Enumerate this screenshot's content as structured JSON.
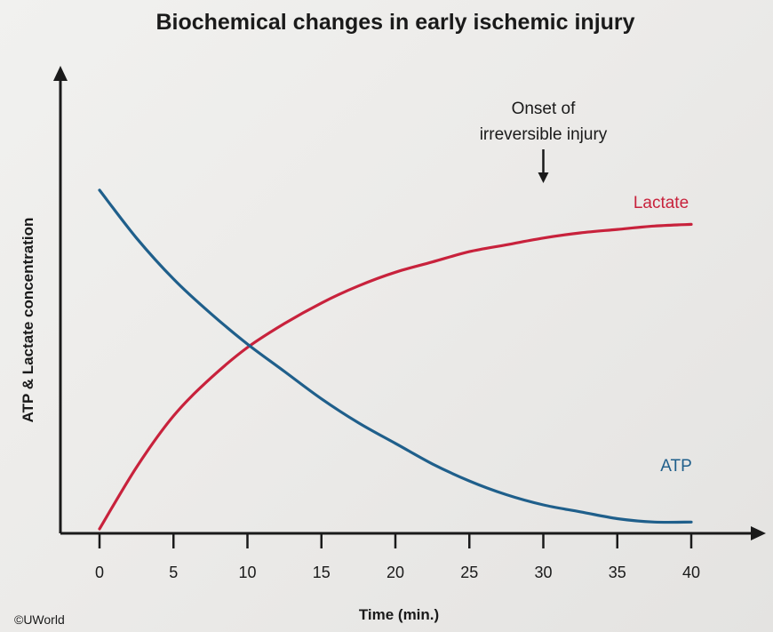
{
  "chart_data": {
    "type": "line",
    "title": "Biochemical changes in early ischemic injury",
    "xlabel": "Time (min.)",
    "ylabel": "ATP & Lactate concentration",
    "xticks": [
      0,
      5,
      10,
      15,
      20,
      25,
      30,
      35,
      40
    ],
    "xlim": [
      0,
      40
    ],
    "ylim": [
      0,
      1
    ],
    "grid": false,
    "x": [
      0,
      2.5,
      5,
      7.5,
      10,
      12.5,
      15,
      17.5,
      20,
      22.5,
      25,
      27.5,
      30,
      32.5,
      35,
      37.5,
      40
    ],
    "series": [
      {
        "name": "Lactate",
        "color": "#c8223c",
        "values": [
          0.0,
          0.18,
          0.33,
          0.44,
          0.53,
          0.6,
          0.66,
          0.71,
          0.75,
          0.78,
          0.81,
          0.83,
          0.85,
          0.865,
          0.875,
          0.885,
          0.89
        ]
      },
      {
        "name": "ATP",
        "color": "#1f5f8b",
        "values": [
          0.99,
          0.85,
          0.73,
          0.63,
          0.54,
          0.46,
          0.38,
          0.31,
          0.25,
          0.19,
          0.14,
          0.1,
          0.07,
          0.05,
          0.03,
          0.02,
          0.02
        ]
      }
    ],
    "annotations": [
      {
        "text_line1": "Onset of",
        "text_line2": "irreversible injury",
        "x": 30,
        "arrow": "down"
      }
    ],
    "copyright": "©UWorld"
  }
}
